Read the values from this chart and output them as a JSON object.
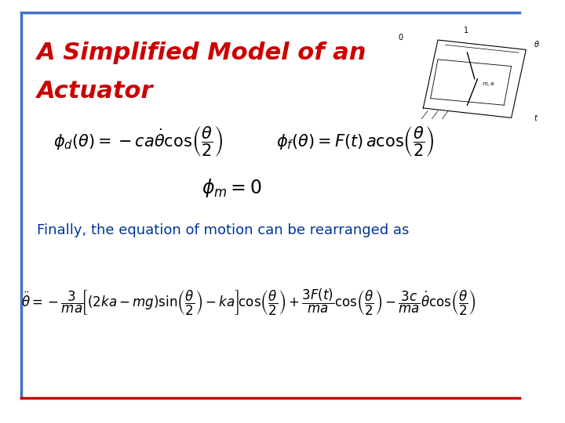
{
  "title_line1": "A Simplified Model of an",
  "title_line2": "Actuator",
  "title_color": "#cc0000",
  "title_fontsize": 22,
  "border_color": "#4472c4",
  "text_color": "#003399",
  "body_text": "Finally, the equation of motion can be rearranged as",
  "body_fontsize": 13,
  "background_color": "#ffffff",
  "border_bottom_color": "#cc0000",
  "eq_fontsize": 15,
  "eq_main_fontsize": 12
}
